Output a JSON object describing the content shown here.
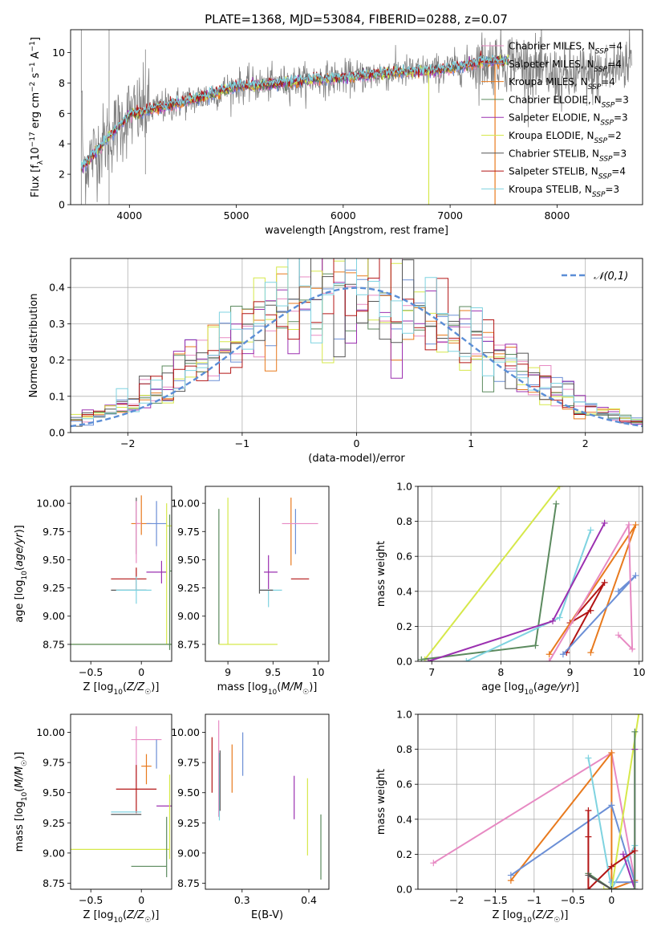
{
  "figure": {
    "title": "PLATE=1368, MJD=53084, FIBERID=0288, z=0.07"
  },
  "chart_data": [
    {
      "id": "spectrum",
      "type": "line",
      "xlabel": "wavelength [Angstrom, rest frame]",
      "ylabel": "Flux [f_λ 10^-17 erg cm^-2 s^-1 A^-1]",
      "xlim": [
        3450,
        8800
      ],
      "ylim": [
        0,
        11.5
      ],
      "xticks": [
        4000,
        5000,
        6000,
        7000,
        8000
      ],
      "yticks": [
        0,
        2,
        4,
        6,
        8,
        10
      ],
      "grid": false,
      "legend_position": "top-right",
      "data_color": "#808080",
      "series": [
        {
          "name": "Chabrier MILES, N_SSP=4",
          "color": "#e78ac3"
        },
        {
          "name": "Salpeter MILES, N_SSP=4",
          "color": "#6b8fd6"
        },
        {
          "name": "Kroupa MILES, N_SSP=4",
          "color": "#e87a1e"
        },
        {
          "name": "Chabrier ELODIE, N_SSP=3",
          "color": "#5b8a5e"
        },
        {
          "name": "Salpeter ELODIE, N_SSP=3",
          "color": "#9b30b0"
        },
        {
          "name": "Kroupa ELODIE, N_SSP=2",
          "color": "#d6e84a"
        },
        {
          "name": "Chabrier STELIB, N_SSP=3",
          "color": "#555555"
        },
        {
          "name": "Salpeter STELIB, N_SSP=4",
          "color": "#b31515"
        },
        {
          "name": "Kroupa STELIB, N_SSP=3",
          "color": "#7fd3e0"
        }
      ],
      "continuum": {
        "x": [
          3550,
          3800,
          4000,
          4300,
          4700,
          5000,
          5300,
          5700,
          6100,
          6500,
          6900,
          7300,
          7600,
          8000,
          8500,
          8700
        ],
        "y": [
          2.4,
          4.4,
          5.9,
          6.4,
          7.1,
          7.8,
          7.9,
          8.2,
          8.4,
          8.7,
          8.8,
          9.4,
          9.5,
          8.3,
          8.8,
          9.7
        ]
      }
    },
    {
      "id": "residuals",
      "type": "histogram",
      "xlabel": "(data-model)/error",
      "ylabel": "Normed distribution",
      "xlim": [
        -2.5,
        2.5
      ],
      "ylim": [
        0,
        0.48
      ],
      "xticks": [
        -2,
        -1,
        0,
        1,
        2
      ],
      "yticks": [
        0.0,
        0.1,
        0.2,
        0.3,
        0.4
      ],
      "grid": true,
      "legend_position": "top-right",
      "reference": {
        "name": "𝒩(0,1)",
        "color": "#5b8ed6"
      },
      "bin_width": 0.1
    },
    {
      "id": "age-vs-Z",
      "type": "errorbar",
      "xlabel": "Z [log10(Z/Z☉)]",
      "ylabel": "age [log10(age/yr)]",
      "xlim": [
        -0.7,
        0.3
      ],
      "ylim": [
        8.6,
        10.15
      ],
      "xticks": [
        -0.5,
        0.0
      ],
      "yticks": [
        8.75,
        9.0,
        9.25,
        9.5,
        9.75,
        10.0
      ],
      "grid": false,
      "points": [
        {
          "x": -0.05,
          "xe": [
            0.0,
            0.0
          ],
          "y": 9.85,
          "ye": [
            0.3,
            0.2
          ],
          "color": "#555555"
        },
        {
          "x": 0.0,
          "xe": [
            0.1,
            0.1
          ],
          "y": 9.82,
          "ye": [
            0.1,
            0.25
          ],
          "color": "#e87a1e"
        },
        {
          "x": 0.15,
          "xe": [
            0.1,
            0.1
          ],
          "y": 9.82,
          "ye": [
            0.2,
            0.2
          ],
          "color": "#6b8fd6"
        },
        {
          "x": -0.05,
          "xe": [
            0.0,
            0.05
          ],
          "y": 9.82,
          "ye": [
            0.35,
            0.2
          ],
          "color": "#e78ac3"
        },
        {
          "x": 0.2,
          "xe": [
            0.15,
            0.05
          ],
          "y": 9.39,
          "ye": [
            0.1,
            0.1
          ],
          "color": "#9b30b0"
        },
        {
          "x": -0.05,
          "xe": [
            0.25,
            0.1
          ],
          "y": 9.33,
          "ye": [
            0.1,
            0.1
          ],
          "color": "#b31515"
        },
        {
          "x": -0.05,
          "xe": [
            0.25,
            0.1
          ],
          "y": 9.23,
          "ye": [
            0.0,
            0.0
          ],
          "color": "#555555"
        },
        {
          "x": -0.05,
          "xe": [
            0.2,
            0.15
          ],
          "y": 9.23,
          "ye": [
            0.12,
            0.12
          ],
          "color": "#7fd3e0"
        },
        {
          "x": 0.25,
          "xe": [
            0.0,
            0.05
          ],
          "y": 9.8,
          "ye": [
            1.05,
            0.2
          ],
          "color": "#d6e84a"
        },
        {
          "x": 0.0,
          "xe": [
            0.7,
            0.3
          ],
          "y": 8.75,
          "ye": [
            0.0,
            0.0
          ],
          "color": "#d6e84a"
        },
        {
          "x": 0.0,
          "xe": [
            0.7,
            0.3
          ],
          "y": 8.75,
          "ye": [
            0.0,
            0.0
          ],
          "color": "#5b8a5e"
        },
        {
          "x": 0.28,
          "xe": [
            0.0,
            0.02
          ],
          "y": 9.4,
          "ye": [
            0.7,
            0.5
          ],
          "color": "#5b8a5e"
        }
      ]
    },
    {
      "id": "age-vs-mass",
      "type": "errorbar",
      "xlabel": "mass [log10(M/M☉)]",
      "ylabel": "",
      "xlim": [
        8.75,
        10.12
      ],
      "ylim": [
        8.6,
        10.15
      ],
      "xticks": [
        9.0,
        9.5,
        10.0
      ],
      "yticks": [
        8.75,
        9.0,
        9.25,
        9.5,
        9.75,
        10.0
      ],
      "grid": false,
      "points": [
        {
          "x": 9.35,
          "xe": [
            0.0,
            0.0
          ],
          "y": 9.7,
          "ye": [
            0.5,
            0.35
          ],
          "color": "#555555"
        },
        {
          "x": 9.7,
          "xe": [
            0.0,
            0.0
          ],
          "y": 9.75,
          "ye": [
            0.3,
            0.3
          ],
          "color": "#e87a1e"
        },
        {
          "x": 9.75,
          "xe": [
            0.0,
            0.0
          ],
          "y": 9.75,
          "ye": [
            0.2,
            0.2
          ],
          "color": "#6b8fd6"
        },
        {
          "x": 9.8,
          "xe": [
            0.2,
            0.2
          ],
          "y": 9.82,
          "ye": [
            0.0,
            0.0
          ],
          "color": "#e78ac3"
        },
        {
          "x": 9.45,
          "xe": [
            0.05,
            0.1
          ],
          "y": 9.39,
          "ye": [
            0.15,
            0.15
          ],
          "color": "#9b30b0"
        },
        {
          "x": 9.45,
          "xe": [
            0.1,
            0.15
          ],
          "y": 9.23,
          "ye": [
            0.15,
            0.0
          ],
          "color": "#7fd3e0"
        },
        {
          "x": 9.45,
          "xe": [
            0.1,
            0.05
          ],
          "y": 9.23,
          "ye": [
            0.0,
            0.0
          ],
          "color": "#555555"
        },
        {
          "x": 9.8,
          "xe": [
            0.1,
            0.1
          ],
          "y": 9.33,
          "ye": [
            0.0,
            0.0
          ],
          "color": "#b31515"
        },
        {
          "x": 8.9,
          "xe": [
            0.0,
            0.0
          ],
          "y": 9.35,
          "ye": [
            0.6,
            0.6
          ],
          "color": "#5b8a5e"
        },
        {
          "x": 9.0,
          "xe": [
            0.0,
            0.0
          ],
          "y": 9.45,
          "ye": [
            0.7,
            0.6
          ],
          "color": "#d6e84a"
        },
        {
          "x": 9.25,
          "xe": [
            0.35,
            0.3
          ],
          "y": 8.75,
          "ye": [
            0.0,
            0.0
          ],
          "color": "#d6e84a"
        }
      ]
    },
    {
      "id": "weight-vs-age",
      "type": "line",
      "xlabel": "age  [log10(age/yr)]",
      "ylabel": "mass weight",
      "xlim": [
        6.8,
        10.05
      ],
      "ylim": [
        0,
        1.0
      ],
      "xticks": [
        7,
        8,
        9,
        10
      ],
      "yticks": [
        0.0,
        0.2,
        0.4,
        0.6,
        0.8,
        1.0
      ],
      "grid": true,
      "series": [
        {
          "color": "#d6e84a",
          "x": [
            6.9,
            8.85
          ],
          "y": [
            0.01,
            1.0
          ]
        },
        {
          "color": "#5b8a5e",
          "x": [
            6.85,
            8.5,
            8.8
          ],
          "y": [
            0.01,
            0.09,
            0.9
          ]
        },
        {
          "color": "#7fd3e0",
          "x": [
            7.5,
            8.85,
            9.3
          ],
          "y": [
            0.0,
            0.25,
            0.75
          ]
        },
        {
          "color": "#9b30b0",
          "x": [
            6.95,
            8.75,
            9.5
          ],
          "y": [
            0.0,
            0.23,
            0.79
          ]
        },
        {
          "color": "#b31515",
          "x": [
            8.95,
            9.5,
            9.0,
            9.3
          ],
          "y": [
            0.05,
            0.45,
            0.22,
            0.29
          ]
        },
        {
          "color": "#e87a1e",
          "x": [
            8.7,
            9.95,
            9.3
          ],
          "y": [
            0.04,
            0.78,
            0.05
          ]
        },
        {
          "color": "#6b8fd6",
          "x": [
            8.9,
            9.95,
            9.7
          ],
          "y": [
            0.04,
            0.49,
            0.4
          ]
        },
        {
          "color": "#e78ac3",
          "x": [
            8.7,
            9.85,
            9.9,
            9.7
          ],
          "y": [
            0.0,
            0.78,
            0.07,
            0.15
          ]
        }
      ]
    },
    {
      "id": "mass-vs-Z",
      "type": "errorbar",
      "xlabel": "Z [log10(Z/Z☉)]",
      "ylabel": "mass [log10(M/M☉)]",
      "xlim": [
        -0.7,
        0.3
      ],
      "ylim": [
        8.7,
        10.15
      ],
      "xticks": [
        -0.5,
        0.0
      ],
      "yticks": [
        8.75,
        9.0,
        9.25,
        9.5,
        9.75,
        10.0
      ],
      "grid": false,
      "points": [
        {
          "x": -0.05,
          "xe": [
            0.05,
            0.25
          ],
          "y": 9.94,
          "ye": [
            0.0,
            0.0
          ],
          "color": "#e78ac3"
        },
        {
          "x": -0.05,
          "xe": [
            0.0,
            0.0
          ],
          "y": 9.85,
          "ye": [
            0.3,
            0.2
          ],
          "color": "#e78ac3"
        },
        {
          "x": 0.15,
          "xe": [
            0.0,
            0.0
          ],
          "y": 9.82,
          "ye": [
            0.12,
            0.12
          ],
          "color": "#6b8fd6"
        },
        {
          "x": 0.05,
          "xe": [
            0.05,
            0.05
          ],
          "y": 9.72,
          "ye": [
            0.15,
            0.1
          ],
          "color": "#e87a1e"
        },
        {
          "x": -0.05,
          "xe": [
            0.2,
            0.2
          ],
          "y": 9.53,
          "ye": [
            0.2,
            0.2
          ],
          "color": "#b31515"
        },
        {
          "x": 0.2,
          "xe": [
            0.05,
            0.1
          ],
          "y": 9.39,
          "ye": [
            0.0,
            0.0
          ],
          "color": "#9b30b0"
        },
        {
          "x": -0.05,
          "xe": [
            0.25,
            0.05
          ],
          "y": 9.34,
          "ye": [
            0.0,
            0.0
          ],
          "color": "#7fd3e0"
        },
        {
          "x": -0.05,
          "xe": [
            0.25,
            0.05
          ],
          "y": 9.32,
          "ye": [
            0.0,
            0.0
          ],
          "color": "#555555"
        },
        {
          "x": 0.0,
          "xe": [
            0.7,
            0.28
          ],
          "y": 9.03,
          "ye": [
            0.0,
            0.0
          ],
          "color": "#d6e84a"
        },
        {
          "x": 0.28,
          "xe": [
            0.0,
            0.0
          ],
          "y": 9.3,
          "ye": [
            0.35,
            0.35
          ],
          "color": "#d6e84a"
        },
        {
          "x": 0.05,
          "xe": [
            0.15,
            0.2
          ],
          "y": 8.89,
          "ye": [
            0.0,
            0.0
          ],
          "color": "#5b8a5e"
        },
        {
          "x": 0.25,
          "xe": [
            0.0,
            0.0
          ],
          "y": 9.05,
          "ye": [
            0.25,
            0.25
          ],
          "color": "#5b8a5e"
        }
      ]
    },
    {
      "id": "mass-vs-EBV",
      "type": "errorbar",
      "xlabel": "E(B-V)",
      "ylabel": "",
      "xlim": [
        0.245,
        0.43
      ],
      "ylim": [
        8.7,
        10.15
      ],
      "xticks": [
        0.3,
        0.4
      ],
      "yticks": [
        8.75,
        9.0,
        9.25,
        9.5,
        9.75,
        10.0
      ],
      "grid": false,
      "points": [
        {
          "x": 0.255,
          "xe": [
            0.0,
            0.0
          ],
          "y": 9.72,
          "ye": [
            0.22,
            0.24
          ],
          "color": "#b31515"
        },
        {
          "x": 0.265,
          "xe": [
            0.0,
            0.0
          ],
          "y": 9.7,
          "ye": [
            0.4,
            0.4
          ],
          "color": "#e78ac3"
        },
        {
          "x": 0.266,
          "xe": [
            0.0,
            0.0
          ],
          "y": 9.55,
          "ye": [
            0.28,
            0.28
          ],
          "color": "#7fd3e0"
        },
        {
          "x": 0.267,
          "xe": [
            0.0,
            0.0
          ],
          "y": 9.6,
          "ye": [
            0.25,
            0.25
          ],
          "color": "#555555"
        },
        {
          "x": 0.285,
          "xe": [
            0.0,
            0.0
          ],
          "y": 9.7,
          "ye": [
            0.2,
            0.2
          ],
          "color": "#e87a1e"
        },
        {
          "x": 0.301,
          "xe": [
            0.0,
            0.0
          ],
          "y": 9.82,
          "ye": [
            0.18,
            0.18
          ],
          "color": "#6b8fd6"
        },
        {
          "x": 0.378,
          "xe": [
            0.0,
            0.0
          ],
          "y": 9.46,
          "ye": [
            0.18,
            0.18
          ],
          "color": "#9b30b0"
        },
        {
          "x": 0.398,
          "xe": [
            0.0,
            0.0
          ],
          "y": 9.3,
          "ye": [
            0.32,
            0.32
          ],
          "color": "#d6e84a"
        },
        {
          "x": 0.418,
          "xe": [
            0.0,
            0.0
          ],
          "y": 9.05,
          "ye": [
            0.27,
            0.27
          ],
          "color": "#5b8a5e"
        }
      ]
    },
    {
      "id": "weight-vs-Z",
      "type": "line",
      "xlabel": "Z [log10(Z/Z☉)]",
      "ylabel": "mass weight",
      "xlim": [
        -2.5,
        0.4
      ],
      "ylim": [
        0,
        1.0
      ],
      "xticks": [
        -2.0,
        -1.5,
        -1.0,
        -0.5,
        0.0
      ],
      "yticks": [
        0.0,
        0.2,
        0.4,
        0.6,
        0.8,
        1.0
      ],
      "grid": true,
      "series": [
        {
          "color": "#e78ac3",
          "x": [
            -2.3,
            0.0,
            0.3
          ],
          "y": [
            0.15,
            0.78,
            0.05
          ]
        },
        {
          "color": "#e87a1e",
          "x": [
            -1.3,
            0.0,
            0.0,
            0.3
          ],
          "y": [
            0.05,
            0.78,
            0.0,
            0.05
          ]
        },
        {
          "color": "#6b8fd6",
          "x": [
            -1.3,
            0.0,
            0.3,
            0.0
          ],
          "y": [
            0.08,
            0.48,
            0.04,
            0.04
          ]
        },
        {
          "color": "#7fd3e0",
          "x": [
            -0.3,
            0.0,
            0.3
          ],
          "y": [
            0.75,
            0.0,
            0.25
          ]
        },
        {
          "color": "#d6e84a",
          "x": [
            -0.1,
            0.0,
            0.35
          ],
          "y": [
            0.0,
            0.0,
            1.0
          ]
        },
        {
          "color": "#9b30b0",
          "x": [
            0.3,
            0.3,
            0.15
          ],
          "y": [
            0.8,
            0.0,
            0.2
          ]
        },
        {
          "color": "#5b8a5e",
          "x": [
            -0.3,
            0.0,
            0.3,
            0.3
          ],
          "y": [
            0.09,
            0.0,
            0.0,
            0.9
          ]
        },
        {
          "color": "#b31515",
          "x": [
            -0.3,
            -0.3,
            -0.3,
            0.0,
            0.3
          ],
          "y": [
            0.45,
            0.3,
            0.0,
            0.13,
            0.22
          ]
        },
        {
          "color": "#555555",
          "x": [
            -0.3,
            0.0
          ],
          "y": [
            0.08,
            0.0
          ]
        }
      ]
    }
  ]
}
